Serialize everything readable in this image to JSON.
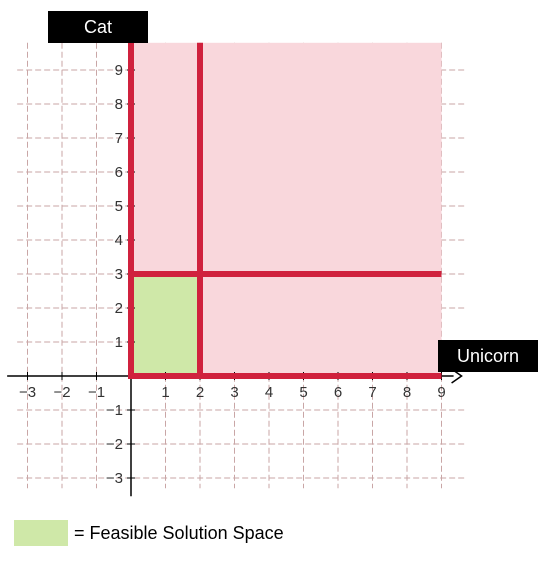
{
  "chart_data": {
    "type": "area",
    "xlabel": "Unicorn",
    "ylabel": "Cat",
    "xlim": [
      -3.3,
      9.7
    ],
    "ylim": [
      -3.3,
      9.8
    ],
    "x_ticks": [
      -3,
      -2,
      -1,
      1,
      2,
      3,
      4,
      5,
      6,
      7,
      8,
      9
    ],
    "y_ticks": [
      -3,
      -2,
      -1,
      1,
      2,
      3,
      4,
      5,
      6,
      7,
      8,
      9
    ],
    "x_tick_labels": [
      "−3",
      "−2",
      "−1",
      "1",
      "2",
      "3",
      "4",
      "5",
      "6",
      "7",
      "8",
      "9"
    ],
    "y_tick_labels": [
      "−3",
      "−2",
      "−1",
      "1",
      "2",
      "3",
      "4",
      "5",
      "6",
      "7",
      "8",
      "9"
    ],
    "grid": true,
    "shaded_regions": [
      {
        "label": "",
        "x": [
          0,
          9
        ],
        "y": [
          0,
          9.8
        ],
        "color": "#f9d7dc"
      },
      {
        "label": "Feasible Solution Space",
        "x": [
          0,
          2
        ],
        "y": [
          0,
          3
        ],
        "color": "#cfe8a8"
      }
    ],
    "constraint_lines": [
      {
        "type": "vertical",
        "x": 0,
        "y_range": [
          0,
          10.5
        ],
        "color": "#d0213d"
      },
      {
        "type": "vertical",
        "x": 2,
        "y_range": [
          0,
          9.8
        ],
        "color": "#d0213d"
      },
      {
        "type": "horizontal",
        "y": 3,
        "x_range": [
          0,
          9
        ],
        "color": "#d0213d"
      },
      {
        "type": "horizontal",
        "y": 0,
        "x_range": [
          0,
          9
        ],
        "color": "#d0213d"
      }
    ]
  },
  "legend": {
    "swatch_color": "#cfe8a8",
    "text": "= Feasible Solution Space"
  },
  "axes_labels": {
    "y": "Cat",
    "x": "Unicorn"
  }
}
